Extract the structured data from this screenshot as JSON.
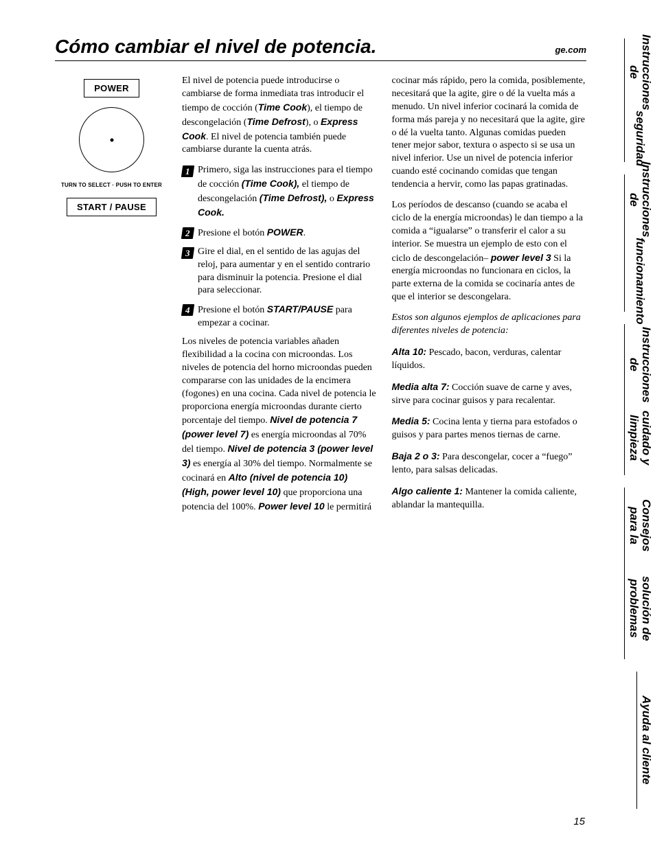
{
  "header": {
    "title": "Cómo cambiar el nivel de potencia.",
    "url": "ge.com"
  },
  "tabs": {
    "t1a": "Instrucciones de",
    "t1b": "seguridad",
    "t2a": "Instrucciones de",
    "t2b": "funcionamiento",
    "t3a": "Instrucciones de",
    "t3b": "cuidado y limpieza",
    "t4a": "Consejos para la",
    "t4b": "solución de problemas",
    "t5": "Ayuda al cliente"
  },
  "panel": {
    "power_btn": "POWER",
    "dial_label": "TURN TO SELECT · PUSH TO ENTER",
    "start_btn": "START / PAUSE"
  },
  "body": {
    "intro_a": "El nivel de potencia puede introducirse o cambiarse de forma inmediata tras introducir el tiempo de cocción (",
    "intro_tc": "Time Cook",
    "intro_b": "), el tiempo de descongelación (",
    "intro_td": "Time Defrost",
    "intro_c": "), o ",
    "intro_ec": "Express Cook",
    "intro_d": ". El nivel de potencia también puede cambiarse durante la cuenta atrás.",
    "step1_a": "Primero, siga las instrucciones para el tiempo de cocción ",
    "step1_b": "(Time Cook),",
    "step1_c": " el tiempo de descongelación ",
    "step1_d": "(Time Defrost),",
    "step1_e": " o ",
    "step1_f": "Express Cook.",
    "step2_a": "Presione el botón ",
    "step2_b": "POWER",
    "step2_c": ".",
    "step3": "Gire el dial, en el sentido de las agujas del reloj, para aumentar y en el sentido contrario para disminuir la potencia. Presione el dial para seleccionar.",
    "step4_a": "Presione el botón ",
    "step4_b": "START/PAUSE",
    "step4_c": " para empezar a cocinar.",
    "long_a": "Los niveles de potencia variables añaden flexibilidad a la cocina con microondas. Los niveles de potencia del horno microondas pueden compararse con las unidades de la encimera (fogones) en una cocina. Cada nivel de potencia le proporciona energía microondas durante cierto porcentaje del tiempo. ",
    "long_b": "Nivel de potencia 7 (power level 7)",
    "long_c": " es energía microondas al 70% del tiempo. ",
    "long_d": "Nivel de potencia 3 (power level 3)",
    "long_e": " es energía al 30% del tiempo. Normalmente se cocinará en ",
    "long_f": "Alto (nivel de potencia 10) (High, power level 10)",
    "long_g": " que proporciona una potencia del 100%. ",
    "long_h": "Power level 10",
    "long_i": " le permitirá cocinar más rápido, pero la comida, posiblemente, necesitará que la agite, gire o dé la vuelta más a menudo. Un nivel inferior cocinará la comida de forma más pareja y no necesitará que la agite, gire o dé la vuelta tanto. Algunas comidas pueden tener mejor sabor, textura o aspecto si se usa un nivel inferior. Use un nivel de potencia inferior cuando esté cocinando comidas que tengan tendencia a hervir, como las papas gratinadas.",
    "rest_a": "Los períodos de descanso (cuando se acaba el ciclo de la energía microondas) le dan tiempo a la comida a “igualarse” o transferir el calor a su interior. Se muestra un ejemplo de esto con el ciclo de descongelación– ",
    "rest_b": "power level 3",
    "rest_c": " Si la energía microondas no funcionara en ciclos, la parte externa de la comida se cocinaría antes de que el interior se descongelara.",
    "examples_intro": "Estos son algunos ejemplos de aplicaciones para diferentes niveles de potencia:",
    "ex1_l": "Alta 10:",
    "ex1_t": " Pescado, bacon, verduras, calentar líquidos.",
    "ex2_l": "Media alta 7:",
    "ex2_t": " Cocción suave de carne y aves, sirve para cocinar guisos y para recalentar.",
    "ex3_l": "Media 5:",
    "ex3_t": " Cocina lenta y tierna para estofados o guisos y para partes menos tiernas de carne.",
    "ex4_l": "Baja 2 o 3:",
    "ex4_t": " Para descongelar, cocer a “fuego” lento, para salsas delicadas.",
    "ex5_l": "Algo caliente 1:",
    "ex5_t": " Mantener la comida caliente, ablandar la mantequilla."
  },
  "page_number": "15"
}
